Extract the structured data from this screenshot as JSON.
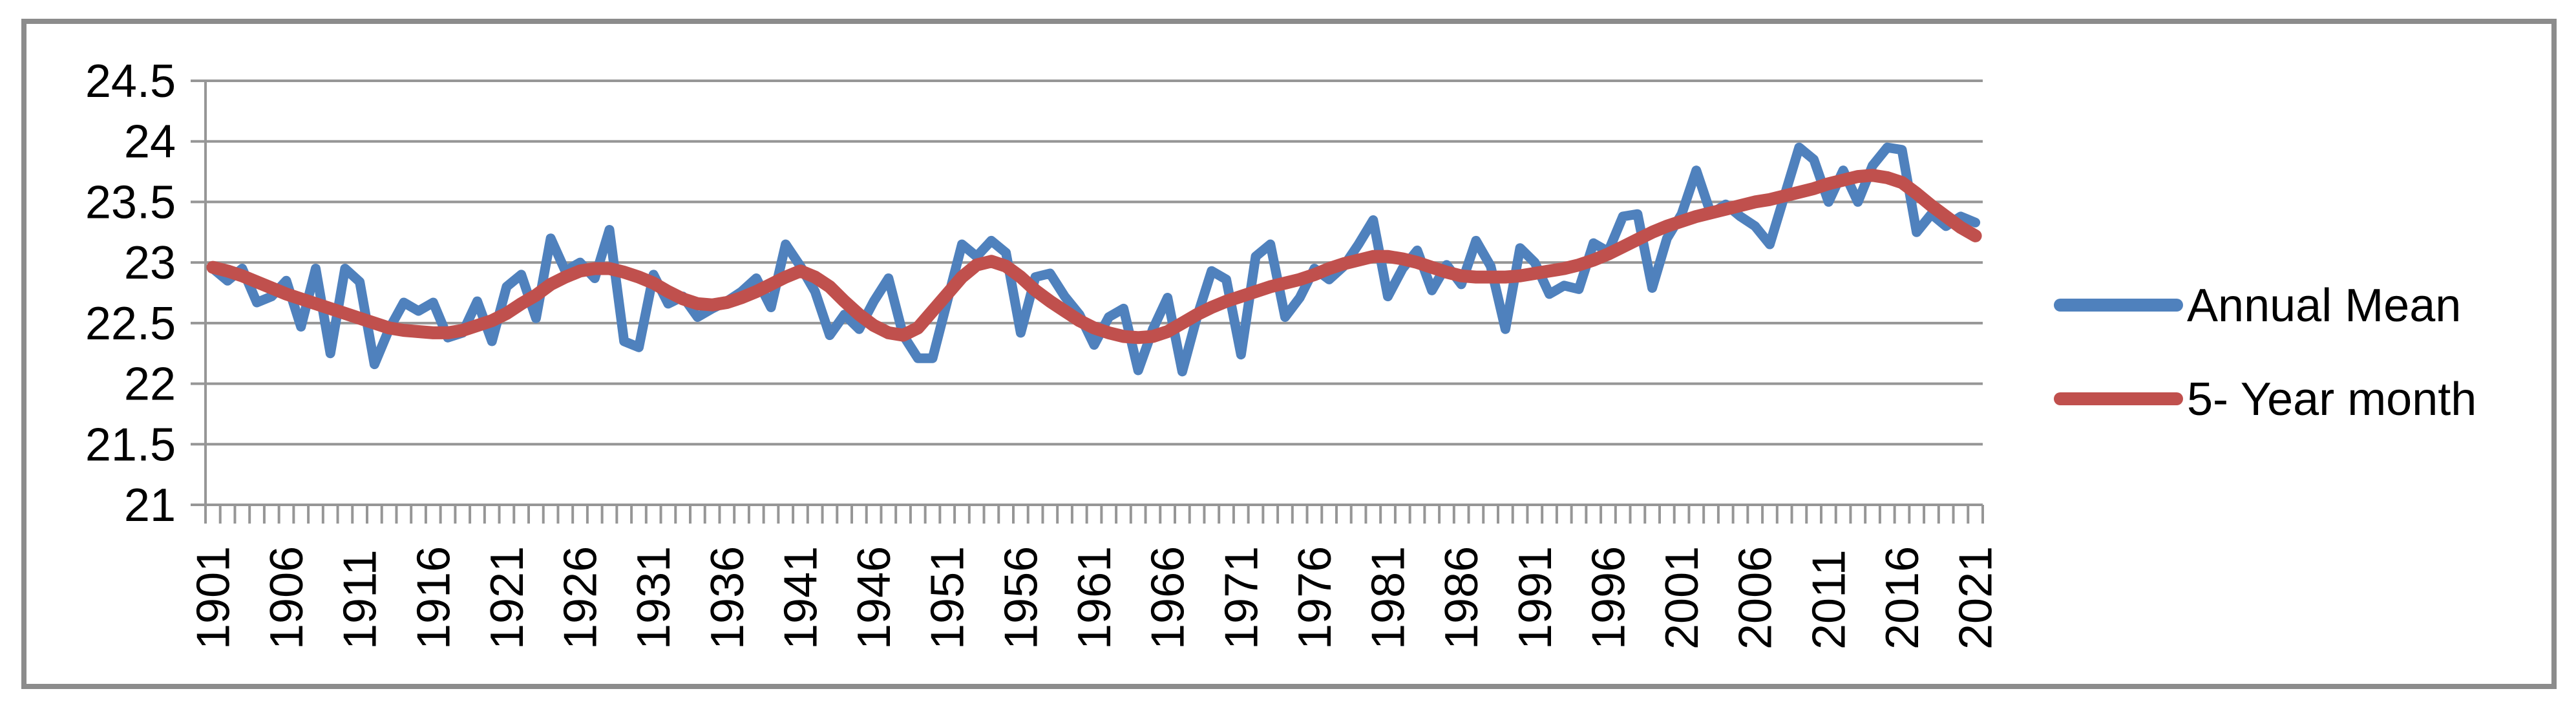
{
  "chart_data": {
    "type": "line",
    "title": "",
    "xlabel": "",
    "ylabel": "",
    "x_start": 1901,
    "x_end": 2021,
    "x_step": 1,
    "x_tick_labels": [
      "1901",
      "1906",
      "1911",
      "1916",
      "1921",
      "1926",
      "1931",
      "1936",
      "1941",
      "1946",
      "1951",
      "1956",
      "1961",
      "1966",
      "1971",
      "1976",
      "1981",
      "1986",
      "1991",
      "1996",
      "2001",
      "2006",
      "2011",
      "2016",
      "2021"
    ],
    "y_ticks": [
      21,
      21.5,
      22,
      22.5,
      23,
      23.5,
      24,
      24.5
    ],
    "ylim": [
      21,
      24.5
    ],
    "grid": "horizontal",
    "legend_position": "right",
    "series": [
      {
        "name": "Annual Mean",
        "color": "#4F81BD",
        "values": [
          22.95,
          22.85,
          22.95,
          22.67,
          22.72,
          22.85,
          22.47,
          22.95,
          22.25,
          22.95,
          22.84,
          22.16,
          22.45,
          22.67,
          22.6,
          22.67,
          22.38,
          22.42,
          22.68,
          22.35,
          22.8,
          22.9,
          22.54,
          23.2,
          22.93,
          23.0,
          22.87,
          23.27,
          22.35,
          22.3,
          22.9,
          22.66,
          22.72,
          22.55,
          22.62,
          22.68,
          22.76,
          22.87,
          22.63,
          23.15,
          22.97,
          22.76,
          22.4,
          22.57,
          22.45,
          22.68,
          22.87,
          22.4,
          22.21,
          22.21,
          22.68,
          23.15,
          23.05,
          23.18,
          23.08,
          22.42,
          22.88,
          22.91,
          22.72,
          22.57,
          22.32,
          22.55,
          22.62,
          22.11,
          22.45,
          22.71,
          22.1,
          22.55,
          22.93,
          22.86,
          22.24,
          23.05,
          23.15,
          22.55,
          22.71,
          22.95,
          22.86,
          22.97,
          23.15,
          23.35,
          22.72,
          22.95,
          23.1,
          22.77,
          22.98,
          22.82,
          23.18,
          22.97,
          22.45,
          23.12,
          23.0,
          22.74,
          22.81,
          22.78,
          23.16,
          23.09,
          23.38,
          23.4,
          22.79,
          23.2,
          23.4,
          23.76,
          23.4,
          23.48,
          23.38,
          23.3,
          23.15,
          23.55,
          23.95,
          23.85,
          23.5,
          23.76,
          23.5,
          23.8,
          23.95,
          23.93,
          23.25,
          23.4,
          23.3,
          23.38,
          23.33
        ]
      },
      {
        "name": "5- Year month",
        "color": "#C0504D",
        "values": [
          22.96,
          22.93,
          22.89,
          22.84,
          22.79,
          22.74,
          22.7,
          22.66,
          22.62,
          22.58,
          22.54,
          22.5,
          22.46,
          22.44,
          22.43,
          22.42,
          22.42,
          22.44,
          22.48,
          22.52,
          22.58,
          22.66,
          22.73,
          22.82,
          22.88,
          22.93,
          22.95,
          22.95,
          22.92,
          22.88,
          22.83,
          22.76,
          22.7,
          22.66,
          22.65,
          22.67,
          22.71,
          22.76,
          22.82,
          22.88,
          22.93,
          22.88,
          22.8,
          22.68,
          22.57,
          22.48,
          22.42,
          22.4,
          22.46,
          22.6,
          22.74,
          22.88,
          22.98,
          23.01,
          22.97,
          22.88,
          22.77,
          22.68,
          22.6,
          22.52,
          22.46,
          22.42,
          22.39,
          22.38,
          22.39,
          22.43,
          22.5,
          22.57,
          22.63,
          22.68,
          22.72,
          22.76,
          22.8,
          22.83,
          22.86,
          22.9,
          22.95,
          22.99,
          23.02,
          23.05,
          23.05,
          23.03,
          23.0,
          22.96,
          22.92,
          22.89,
          22.88,
          22.88,
          22.88,
          22.89,
          22.91,
          22.93,
          22.95,
          22.98,
          23.02,
          23.07,
          23.13,
          23.19,
          23.25,
          23.3,
          23.34,
          23.38,
          23.41,
          23.44,
          23.47,
          23.5,
          23.52,
          23.55,
          23.58,
          23.61,
          23.65,
          23.68,
          23.71,
          23.72,
          23.7,
          23.66,
          23.57,
          23.47,
          23.38,
          23.29,
          23.22
        ]
      }
    ]
  },
  "colors": {
    "gridline": "#969696",
    "axis": "#969696",
    "frame_border": "#8C8C8C",
    "text": "#000000",
    "background": "#FFFFFF"
  }
}
